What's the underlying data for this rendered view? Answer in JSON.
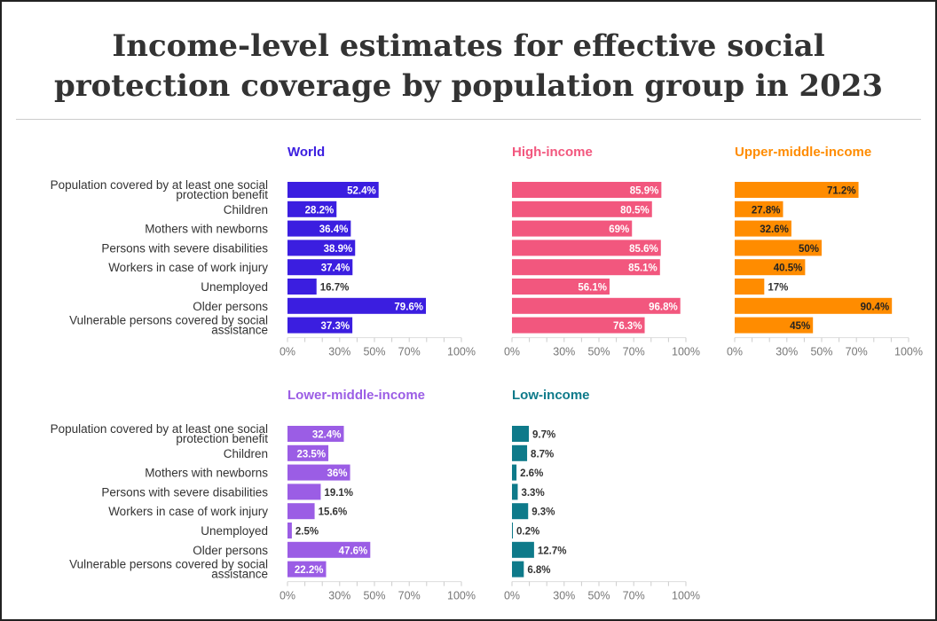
{
  "title": "Income-level estimates for effective social protection coverage by population group in 2023",
  "title_lines": [
    "Income-level estimates for effective social",
    "protection coverage by population group in 2023"
  ],
  "chart_data": [
    {
      "type": "bar",
      "title": "World",
      "color": "#3b1ee0",
      "label_text_color": "#fff",
      "categories": [
        "Population covered by at least one social protection benefit",
        "Children",
        "Mothers with newborns",
        "Persons with severe disabilities",
        "Workers in case of work injury",
        "Unemployed",
        "Older persons",
        "Vulnerable persons covered by social assistance"
      ],
      "values": [
        52.4,
        28.2,
        36.4,
        38.9,
        37.4,
        16.7,
        79.6,
        37.3
      ],
      "labels": [
        "52.4%",
        "28.2%",
        "36.4%",
        "38.9%",
        "37.4%",
        "16.7%",
        "79.6%",
        "37.3%"
      ],
      "xlim": [
        0,
        100
      ],
      "xticks": [
        "0%",
        "30%",
        "50%",
        "70%",
        "100%"
      ]
    },
    {
      "type": "bar",
      "title": "High-income",
      "color": "#f2577e",
      "label_text_color": "#fff",
      "values": [
        85.9,
        80.5,
        69,
        85.6,
        85.1,
        56.1,
        96.8,
        76.3
      ],
      "labels": [
        "85.9%",
        "80.5%",
        "69%",
        "85.6%",
        "85.1%",
        "56.1%",
        "96.8%",
        "76.3%"
      ],
      "xlim": [
        0,
        100
      ],
      "xticks": [
        "0%",
        "30%",
        "50%",
        "70%",
        "100%"
      ]
    },
    {
      "type": "bar",
      "title": "Upper-middle-income",
      "color": "#ff8c00",
      "label_text_color": "#222",
      "values": [
        71.2,
        27.8,
        32.6,
        50,
        40.5,
        17,
        90.4,
        45
      ],
      "labels": [
        "71.2%",
        "27.8%",
        "32.6%",
        "50%",
        "40.5%",
        "17%",
        "90.4%",
        "45%"
      ],
      "xlim": [
        0,
        100
      ],
      "xticks": [
        "0%",
        "30%",
        "50%",
        "70%",
        "100%"
      ]
    },
    {
      "type": "bar",
      "title": "Lower-middle-income",
      "color": "#9b5de5",
      "label_text_color": "#fff",
      "categories": [
        "Population covered by at least one social protection benefit",
        "Children",
        "Mothers with newborns",
        "Persons with severe disabilities",
        "Workers in case of work injury",
        "Unemployed",
        "Older persons",
        "Vulnerable persons covered by social assistance"
      ],
      "values": [
        32.4,
        23.5,
        36,
        19.1,
        15.6,
        2.5,
        47.6,
        22.2
      ],
      "labels": [
        "32.4%",
        "23.5%",
        "36%",
        "19.1%",
        "15.6%",
        "2.5%",
        "47.6%",
        "22.2%"
      ],
      "xlim": [
        0,
        100
      ],
      "xticks": [
        "0%",
        "30%",
        "50%",
        "70%",
        "100%"
      ]
    },
    {
      "type": "bar",
      "title": "Low-income",
      "color": "#0e7a8a",
      "label_text_color": "#fff",
      "values": [
        9.7,
        8.7,
        2.6,
        3.3,
        9.3,
        0.2,
        12.7,
        6.8
      ],
      "labels": [
        "9.7%",
        "8.7%",
        "2.6%",
        "3.3%",
        "9.3%",
        "0.2%",
        "12.7%",
        "6.8%"
      ],
      "xlim": [
        0,
        100
      ],
      "xticks": [
        "0%",
        "30%",
        "50%",
        "70%",
        "100%"
      ]
    }
  ],
  "category_label_lines": [
    [
      "Population covered by at least one social",
      "protection benefit"
    ],
    [
      "Children"
    ],
    [
      "Mothers with newborns"
    ],
    [
      "Persons with severe disabilities"
    ],
    [
      "Workers in case of work injury"
    ],
    [
      "Unemployed"
    ],
    [
      "Older persons"
    ],
    [
      "Vulnerable persons covered by social",
      "assistance"
    ]
  ]
}
